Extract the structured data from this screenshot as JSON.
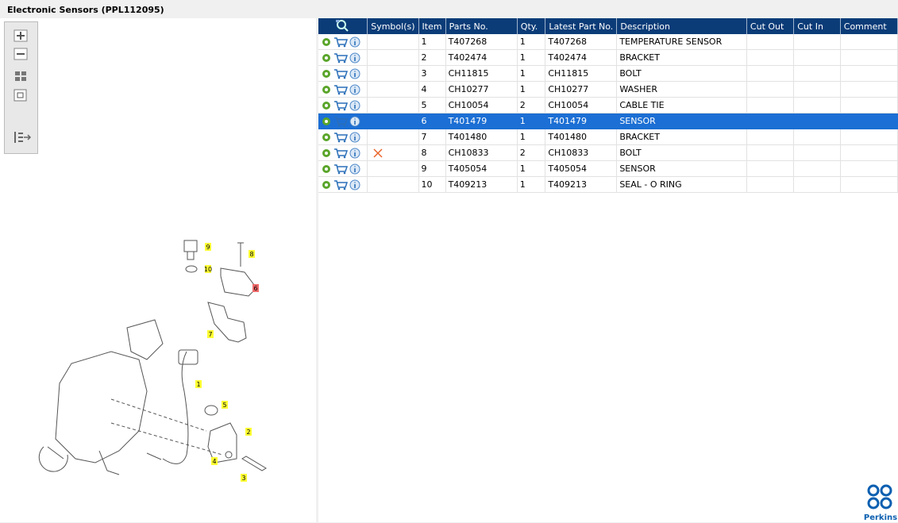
{
  "window": {
    "title": "Electronic Sensors (PPL112095)"
  },
  "table": {
    "headers": [
      "Symbol(s)",
      "Item",
      "Parts No.",
      "Qty.",
      "Latest Part No.",
      "Description",
      "Cut Out",
      "Cut In",
      "Comment"
    ],
    "rows": [
      [
        1,
        "T407268",
        1,
        "T407268",
        "TEMPERATURE SENSOR"
      ],
      [
        2,
        "T402474",
        1,
        "T402474",
        "BRACKET"
      ],
      [
        3,
        "CH11815",
        1,
        "CH11815",
        "BOLT"
      ],
      [
        4,
        "CH10277",
        1,
        "CH10277",
        "WASHER"
      ],
      [
        5,
        "CH10054",
        2,
        "CH10054",
        "CABLE TIE"
      ],
      [
        6,
        "T401479",
        1,
        "T401479",
        "SENSOR"
      ],
      [
        7,
        "T401480",
        1,
        "T401480",
        "BRACKET"
      ],
      [
        8,
        "CH10833",
        2,
        "CH10833",
        "BOLT"
      ],
      [
        9,
        "T405054",
        1,
        "T405054",
        "SENSOR"
      ],
      [
        10,
        "T409213",
        1,
        "T409213",
        "SEAL - O RING"
      ]
    ]
  },
  "diagram": {
    "callouts": [
      "9",
      "8",
      "10",
      "6",
      "7",
      "1",
      "5",
      "2",
      "4",
      "3"
    ]
  },
  "logo": {
    "text": "Perkins"
  }
}
